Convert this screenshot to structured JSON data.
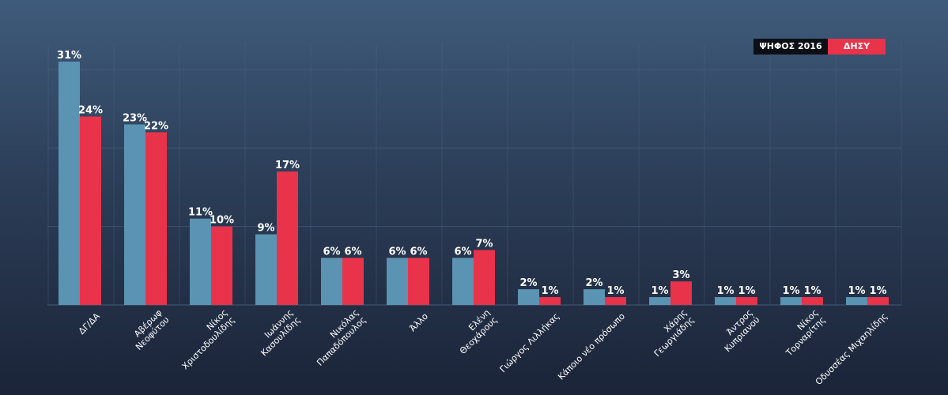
{
  "chart_data": {
    "type": "bar",
    "title": "",
    "xlabel": "",
    "ylabel": "",
    "ylim": [
      0,
      31
    ],
    "grid": true,
    "legend_position": "top-right",
    "categories": [
      "ΔΓ/ΔΑ",
      "Αβέρωφ Νεοφύτου",
      "Νίκος Χριστοδουλίδης",
      "Ιωάννης Κασουλίδης",
      "Νικόλας Παπαδόπουλος",
      "Άλλο",
      "Ελένη Θεοχάρους",
      "Γιώργος Λιλλήκας",
      "Κάποιο νέο πρόσωπο",
      "Χάρης Γεωργιάδης",
      "Άντρος Κυπριανού",
      "Νίκος Τορναρίτης",
      "Οδυσσέας Μιχαηλίδης"
    ],
    "category_lines": [
      [
        "ΔΓ/ΔΑ"
      ],
      [
        "Αβέρωφ",
        "Νεοφύτου"
      ],
      [
        "Νίκος",
        "Χριστοδουλίδης"
      ],
      [
        "Ιωάννης",
        "Κασουλίδης"
      ],
      [
        "Νικόλας",
        "Παπαδόπουλος"
      ],
      [
        "Άλλο"
      ],
      [
        "Ελένη",
        "Θεοχάρους"
      ],
      [
        "Γιώργος Λιλλήκας"
      ],
      [
        "Κάποιο νέο πρόσωπο"
      ],
      [
        "Χάρης",
        "Γεωργιάδης"
      ],
      [
        "Άντρος",
        "Κυπριανού"
      ],
      [
        "Νίκος",
        "Τορναρίτης"
      ],
      [
        "Οδυσσέας Μιχαηλίδης"
      ]
    ],
    "series": [
      {
        "name": "ΨΗΦΟΣ 2016",
        "color": "#5b93b3",
        "values": [
          31,
          23,
          11,
          9,
          6,
          6,
          6,
          2,
          2,
          1,
          1,
          1,
          1
        ]
      },
      {
        "name": "ΔΗΣΥ",
        "color": "#e8334a",
        "values": [
          24,
          22,
          10,
          17,
          6,
          6,
          7,
          1,
          1,
          3,
          1,
          1,
          1
        ]
      }
    ],
    "value_suffix": "%"
  }
}
